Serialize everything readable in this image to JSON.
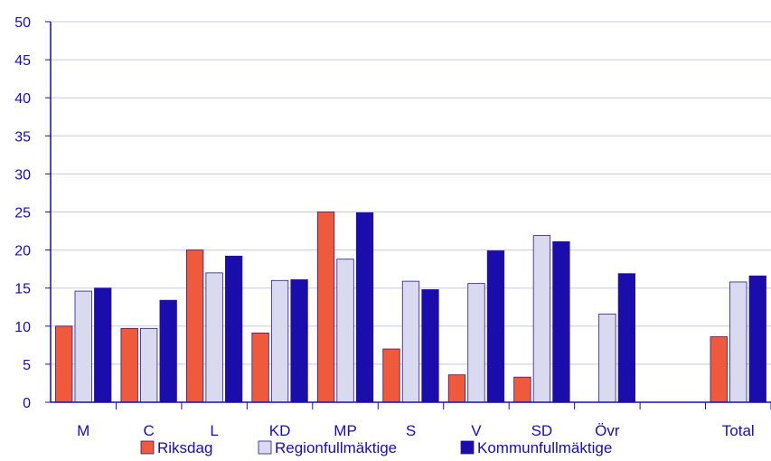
{
  "chart_data": {
    "type": "bar",
    "title": "",
    "xlabel": "",
    "ylabel": "",
    "ylim": [
      0,
      50
    ],
    "yticks": [
      0,
      5,
      10,
      15,
      20,
      25,
      30,
      35,
      40,
      45,
      50
    ],
    "grid": true,
    "legend_position": "bottom",
    "categories": [
      "M",
      "C",
      "L",
      "KD",
      "MP",
      "S",
      "V",
      "SD",
      "Övr",
      "",
      "Total"
    ],
    "series": [
      {
        "name": "Riksdag",
        "color": "#f05a3c",
        "values": [
          10,
          9.7,
          20,
          9.1,
          25,
          7,
          3.6,
          3.3,
          null,
          null,
          8.6
        ]
      },
      {
        "name": "Regionfullmäktige",
        "color": "#d9d9f0",
        "values": [
          14.6,
          9.7,
          17,
          16,
          18.8,
          15.9,
          15.6,
          21.9,
          11.6,
          null,
          15.8
        ]
      },
      {
        "name": "Kommunfullmäktige",
        "color": "#1a0dab",
        "values": [
          15,
          13.4,
          19.2,
          16.1,
          24.9,
          14.8,
          19.9,
          21.1,
          16.9,
          null,
          16.6
        ]
      }
    ]
  }
}
